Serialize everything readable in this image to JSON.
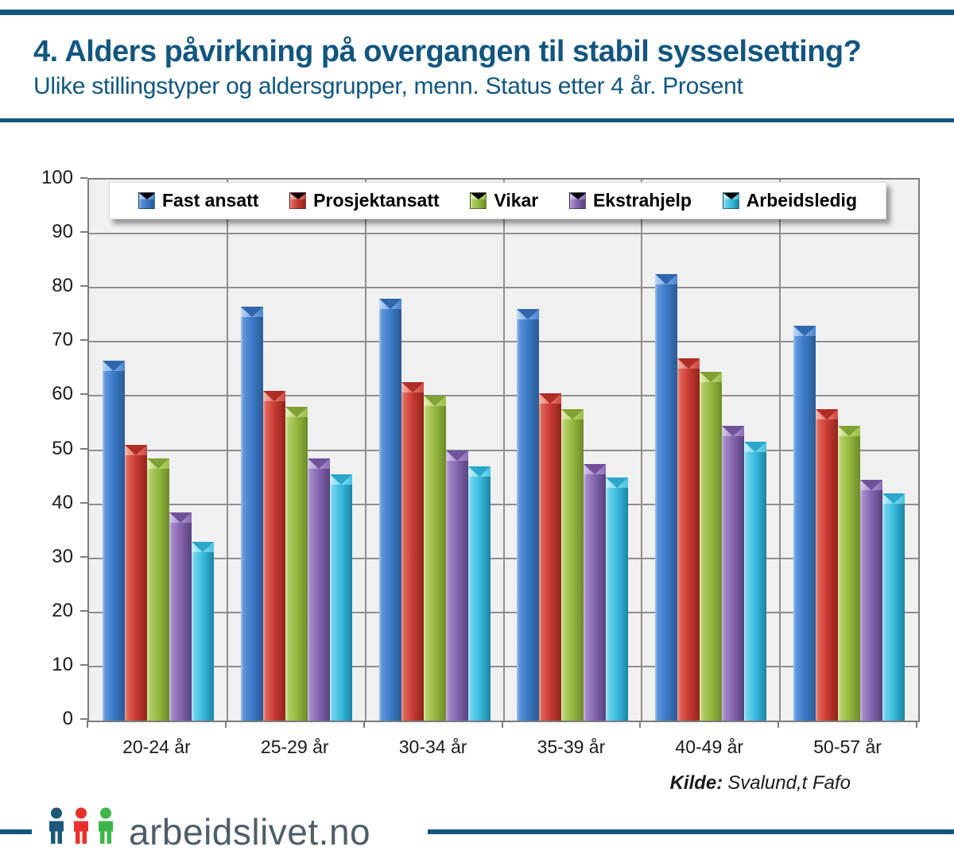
{
  "header": {
    "title": "4. Alders påvirkning på overgangen til stabil sysselsetting?",
    "subtitle": "Ulike stillingstyper og aldersgrupper, menn. Status etter 4 år. Prosent"
  },
  "source": {
    "label": "Kilde:",
    "text": "Svalund,t Fafo"
  },
  "footer": {
    "logo_text": "arbeidslivet.no"
  },
  "colors": {
    "accent_blue": "#12567F",
    "logo_gray": "#4F5E68",
    "plot_background": "#F0F0F0",
    "gridline": "#8F8F8F",
    "person_icon_blue": "#1B5878",
    "person_icon_red": "#E8302A",
    "person_icon_green": "#3DB54A"
  },
  "chart_data": {
    "type": "bar",
    "title": "",
    "xlabel": "",
    "ylabel": "",
    "ylim": [
      0,
      100
    ],
    "ytick_step": 10,
    "grid": true,
    "legend_position": "top",
    "categories": [
      "20-24 år",
      "25-29 år",
      "30-34 år",
      "35-39 år",
      "40-49 år",
      "50-57 år"
    ],
    "series": [
      {
        "name": "Fast ansatt",
        "color": "#3C79C7",
        "values": [
          66.5,
          76.5,
          78,
          76,
          82.5,
          73
        ]
      },
      {
        "name": "Prosjektansatt",
        "color": "#C93B33",
        "values": [
          51,
          61,
          62.5,
          60.5,
          67,
          57.5
        ]
      },
      {
        "name": "Vikar",
        "color": "#96B93F",
        "values": [
          48.5,
          58,
          60,
          57.5,
          64.5,
          54.5
        ]
      },
      {
        "name": "Ekstrahjelp",
        "color": "#8465AE",
        "values": [
          38.5,
          48.5,
          50,
          47.5,
          54.5,
          44.5
        ]
      },
      {
        "name": "Arbeidsledig",
        "color": "#38BCDF",
        "values": [
          33,
          45.5,
          47,
          45,
          51.5,
          42
        ]
      }
    ]
  }
}
